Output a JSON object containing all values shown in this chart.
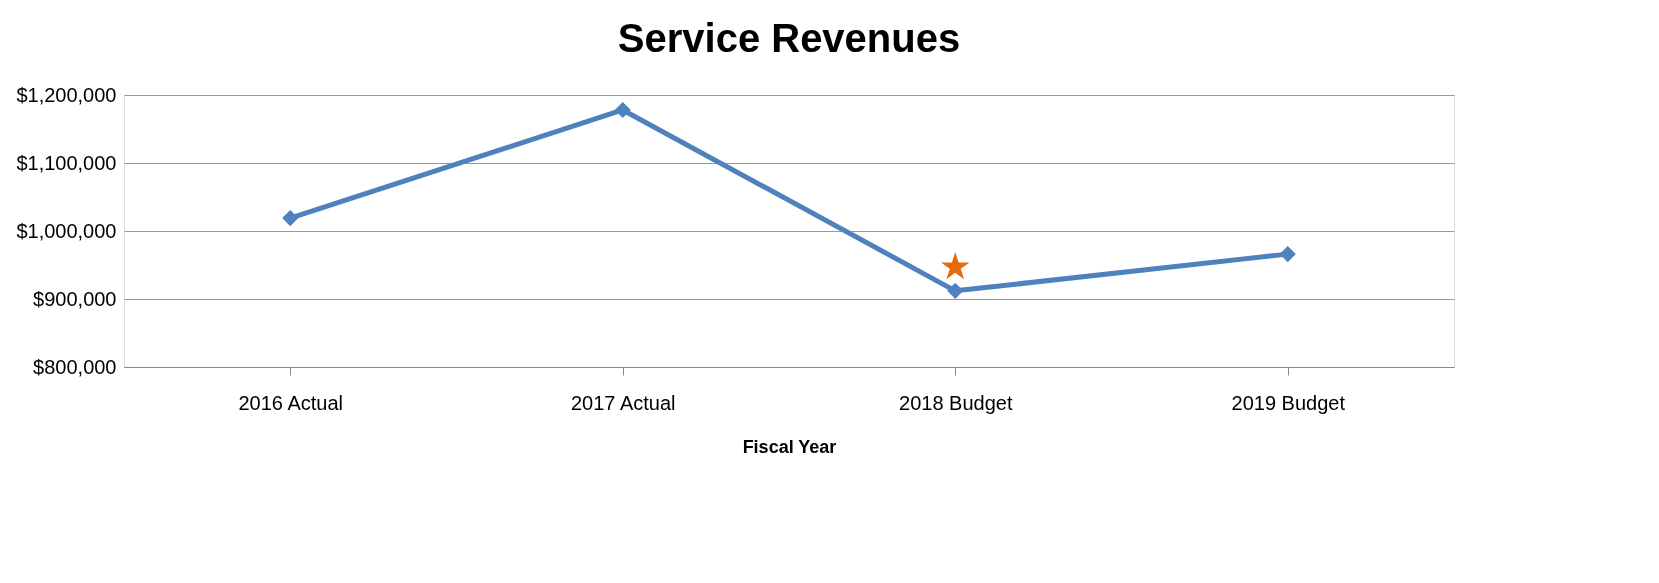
{
  "chart_data": {
    "type": "line",
    "title": "Service Revenues",
    "xlabel": "Fiscal Year",
    "categories": [
      "2016 Actual",
      "2017 Actual",
      "2018 Budget",
      "2019 Budget"
    ],
    "series": [
      {
        "color": "#4f81bd",
        "values": [
          1019000,
          1178000,
          912000,
          966000
        ],
        "marker": "diamond"
      },
      {
        "type": "scatter",
        "color": "#e36c09",
        "x": [
          "2018 Budget"
        ],
        "values": [
          947000
        ],
        "marker": "star"
      }
    ],
    "ylim": [
      800000,
      1200000
    ],
    "yticks": [
      {
        "value": 800000,
        "label": "$800,000"
      },
      {
        "value": 900000,
        "label": "$900,000"
      },
      {
        "value": 1000000,
        "label": "$1,000,000"
      },
      {
        "value": 1100000,
        "label": "$1,100,000"
      },
      {
        "value": 1200000,
        "label": "$1,200,000"
      }
    ],
    "grid": "y"
  }
}
